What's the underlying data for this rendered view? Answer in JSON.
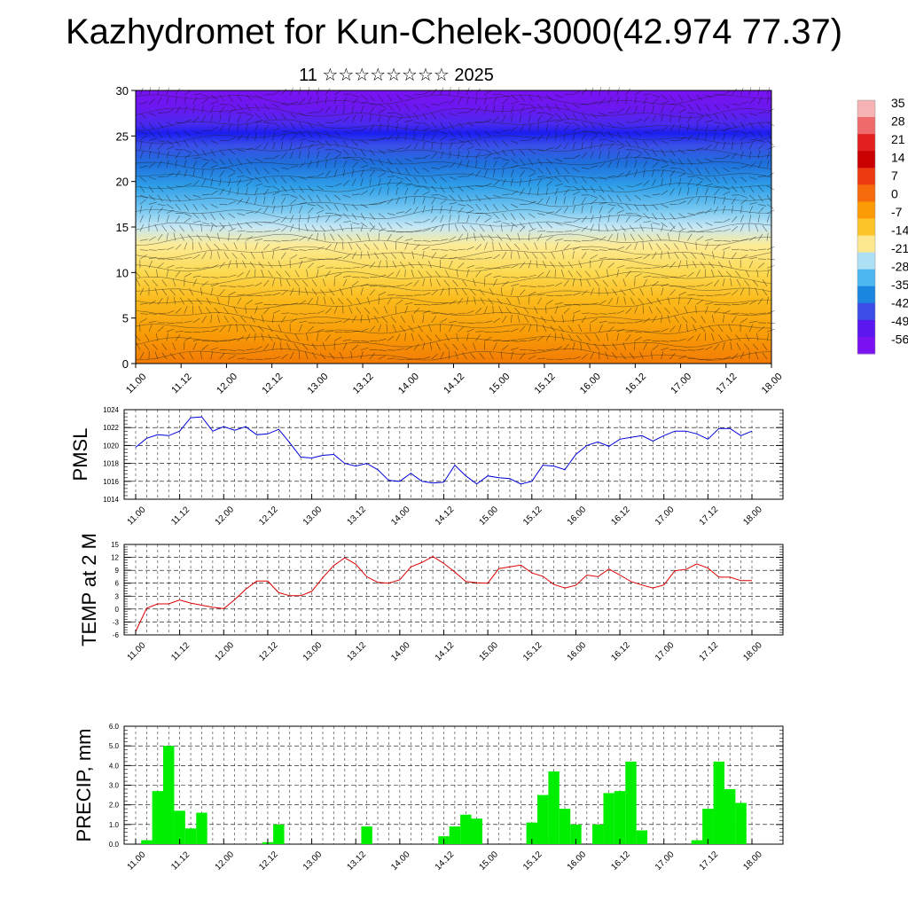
{
  "title": "Kazhydromet for Kun-Chelek-3000(42.974 77.37)",
  "subtitle": "11 ☆☆☆☆☆☆☆☆ 2025",
  "time_labels": [
    "11.00",
    "11.12",
    "12.00",
    "12.12",
    "13.00",
    "13.12",
    "14.00",
    "14.12",
    "15.00",
    "15.12",
    "16.00",
    "16.12",
    "17.00",
    "17.12",
    "18.00"
  ],
  "colorbar": {
    "labels": [
      "35",
      "28",
      "21",
      "14",
      "7",
      "0",
      "-7",
      "-14",
      "-21",
      "-28",
      "-35",
      "-42",
      "-49",
      "-56"
    ],
    "colors": [
      "#f6b3b3",
      "#ef6a6a",
      "#e32020",
      "#c80000",
      "#ee3a10",
      "#f56a0a",
      "#fa9a05",
      "#fdc52a",
      "#fde890",
      "#aee0f5",
      "#4cb8f0",
      "#1a86e0",
      "#3c4de6",
      "#5a18ee",
      "#7a12f2"
    ]
  },
  "chart_data": [
    {
      "type": "heatmap",
      "description_key": "cross-section",
      "ylim": [
        0,
        30
      ],
      "yticks": [
        0,
        5,
        10,
        15,
        20,
        25,
        30
      ],
      "xticks": [
        "11.00",
        "11.12",
        "12.00",
        "12.12",
        "13.00",
        "13.12",
        "14.00",
        "14.12",
        "15.00",
        "15.12",
        "16.00",
        "16.12",
        "17.00",
        "17.12",
        "18.00"
      ],
      "overlay": "wind barbs and isotherms"
    },
    {
      "type": "line",
      "ylabel": "PMSL",
      "ylim": [
        1014,
        1024
      ],
      "yticks": [
        1014,
        1016,
        1018,
        1020,
        1022,
        1024
      ],
      "color": "#0000dd",
      "values": [
        1019.8,
        1020.8,
        1021.2,
        1021.1,
        1021.6,
        1023.1,
        1023.2,
        1021.6,
        1022.1,
        1021.7,
        1022.1,
        1021.2,
        1021.3,
        1021.8,
        1020.3,
        1018.7,
        1018.6,
        1018.9,
        1019.0,
        1018.0,
        1017.7,
        1018.0,
        1017.3,
        1016.1,
        1016.0,
        1016.9,
        1016.0,
        1015.8,
        1015.9,
        1017.8,
        1016.6,
        1015.7,
        1016.6,
        1016.4,
        1016.3,
        1015.7,
        1016.0,
        1017.8,
        1017.7,
        1017.3,
        1019.0,
        1020.0,
        1020.4,
        1019.9,
        1020.7,
        1020.9,
        1021.1,
        1020.5,
        1021.1,
        1021.6,
        1021.6,
        1021.3,
        1020.7,
        1021.9,
        1021.9,
        1021.1,
        1021.6
      ]
    },
    {
      "type": "line",
      "ylabel": "TEMP at 2 M",
      "ylim": [
        -6,
        15
      ],
      "yticks": [
        -6,
        -3,
        0,
        3,
        6,
        9,
        12,
        15
      ],
      "color": "#dd0000",
      "values": [
        -5.2,
        0.2,
        1.2,
        1.2,
        2.1,
        1.4,
        0.9,
        0.4,
        0.1,
        2.2,
        4.6,
        6.5,
        6.5,
        3.8,
        3.1,
        3.1,
        4.1,
        7.3,
        10.1,
        11.9,
        10.4,
        7.5,
        6.2,
        6.0,
        6.8,
        9.8,
        10.8,
        12.2,
        10.6,
        8.6,
        6.4,
        6.1,
        6.0,
        9.4,
        9.8,
        10.2,
        8.4,
        7.6,
        5.7,
        4.9,
        5.5,
        7.9,
        7.5,
        9.3,
        7.9,
        6.4,
        5.6,
        4.9,
        5.6,
        8.9,
        9.2,
        10.5,
        9.5,
        7.4,
        7.4,
        6.6,
        6.6
      ]
    },
    {
      "type": "bar",
      "ylabel": "PRECIP, mm",
      "ylim": [
        0,
        6
      ],
      "yticks": [
        "0.0",
        "1.0",
        "2.0",
        "3.0",
        "4.0",
        "5.0",
        "6.0"
      ],
      "color": "#00ee00",
      "values": [
        0,
        0.2,
        2.7,
        5.0,
        1.7,
        0.8,
        1.6,
        0,
        0,
        0,
        0,
        0,
        0.1,
        1.0,
        0,
        0,
        0,
        0,
        0,
        0,
        0,
        0.9,
        0,
        0,
        0,
        0,
        0,
        0,
        0.4,
        0.9,
        1.5,
        1.3,
        0,
        0,
        0,
        0,
        1.1,
        2.5,
        3.7,
        1.8,
        1.0,
        0,
        1.0,
        2.6,
        2.7,
        4.2,
        0.7,
        0,
        0,
        0,
        0,
        0.2,
        1.8,
        4.2,
        2.8,
        2.1,
        0
      ]
    }
  ]
}
